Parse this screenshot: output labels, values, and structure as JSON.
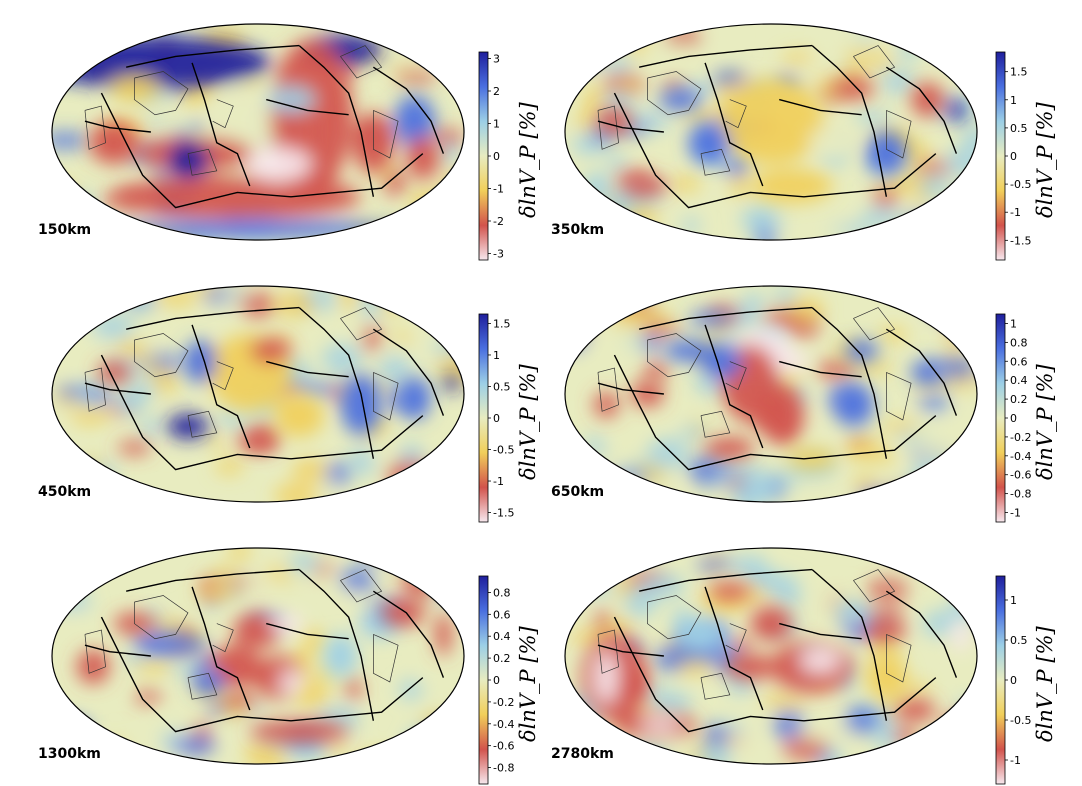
{
  "colorbar_title": "δlnV_P [%]",
  "colors": {
    "strong_positive": "#1f1f9c",
    "positive": "#4a6fe0",
    "weak_positive": "#9ccfe6",
    "neutral": "#e8ecc0",
    "weak_negative": "#f1cf5a",
    "negative": "#d2534c",
    "strong_negative": "#f7e8ee",
    "plate_boundary": "#000000"
  },
  "panels": [
    {
      "depth": "150km",
      "range": [
        -3.2,
        3.2
      ],
      "ticks": [
        "3",
        "2",
        "1",
        "0",
        "-1",
        "-2",
        "-3"
      ],
      "tick_values": [
        3,
        2,
        1,
        0,
        -1,
        -2,
        -3
      ]
    },
    {
      "depth": "350km",
      "range": [
        -1.85,
        1.85
      ],
      "ticks": [
        "1.5",
        "1",
        "0.5",
        "0",
        "-0.5",
        "-1",
        "-1.5"
      ],
      "tick_values": [
        1.5,
        1,
        0.5,
        0,
        -0.5,
        -1,
        -1.5
      ]
    },
    {
      "depth": "450km",
      "range": [
        -1.65,
        1.65
      ],
      "ticks": [
        "1.5",
        "1",
        "0.5",
        "0",
        "-0.5",
        "-1",
        "-1.5"
      ],
      "tick_values": [
        1.5,
        1,
        0.5,
        0,
        -0.5,
        -1,
        -1.5
      ]
    },
    {
      "depth": "650km",
      "range": [
        -1.1,
        1.1
      ],
      "ticks": [
        "1",
        "0.8",
        "0.6",
        "0.4",
        "0.2",
        "0",
        "-0.2",
        "-0.4",
        "-0.6",
        "-0.8",
        "-1"
      ],
      "tick_values": [
        1,
        0.8,
        0.6,
        0.4,
        0.2,
        0,
        -0.2,
        -0.4,
        -0.6,
        -0.8,
        -1
      ]
    },
    {
      "depth": "1300km",
      "range": [
        -0.95,
        0.95
      ],
      "ticks": [
        "0.8",
        "0.6",
        "0.4",
        "0.2",
        "0",
        "-0.2",
        "-0.4",
        "-0.6",
        "-0.8"
      ],
      "tick_values": [
        0.8,
        0.6,
        0.4,
        0.2,
        0,
        -0.2,
        -0.4,
        -0.6,
        -0.8
      ]
    },
    {
      "depth": "2780km",
      "range": [
        -1.3,
        1.3
      ],
      "ticks": [
        "1",
        "0.5",
        "0",
        "-0.5",
        "-1"
      ],
      "tick_values": [
        1,
        0.5,
        0,
        -0.5,
        -1
      ]
    }
  ]
}
